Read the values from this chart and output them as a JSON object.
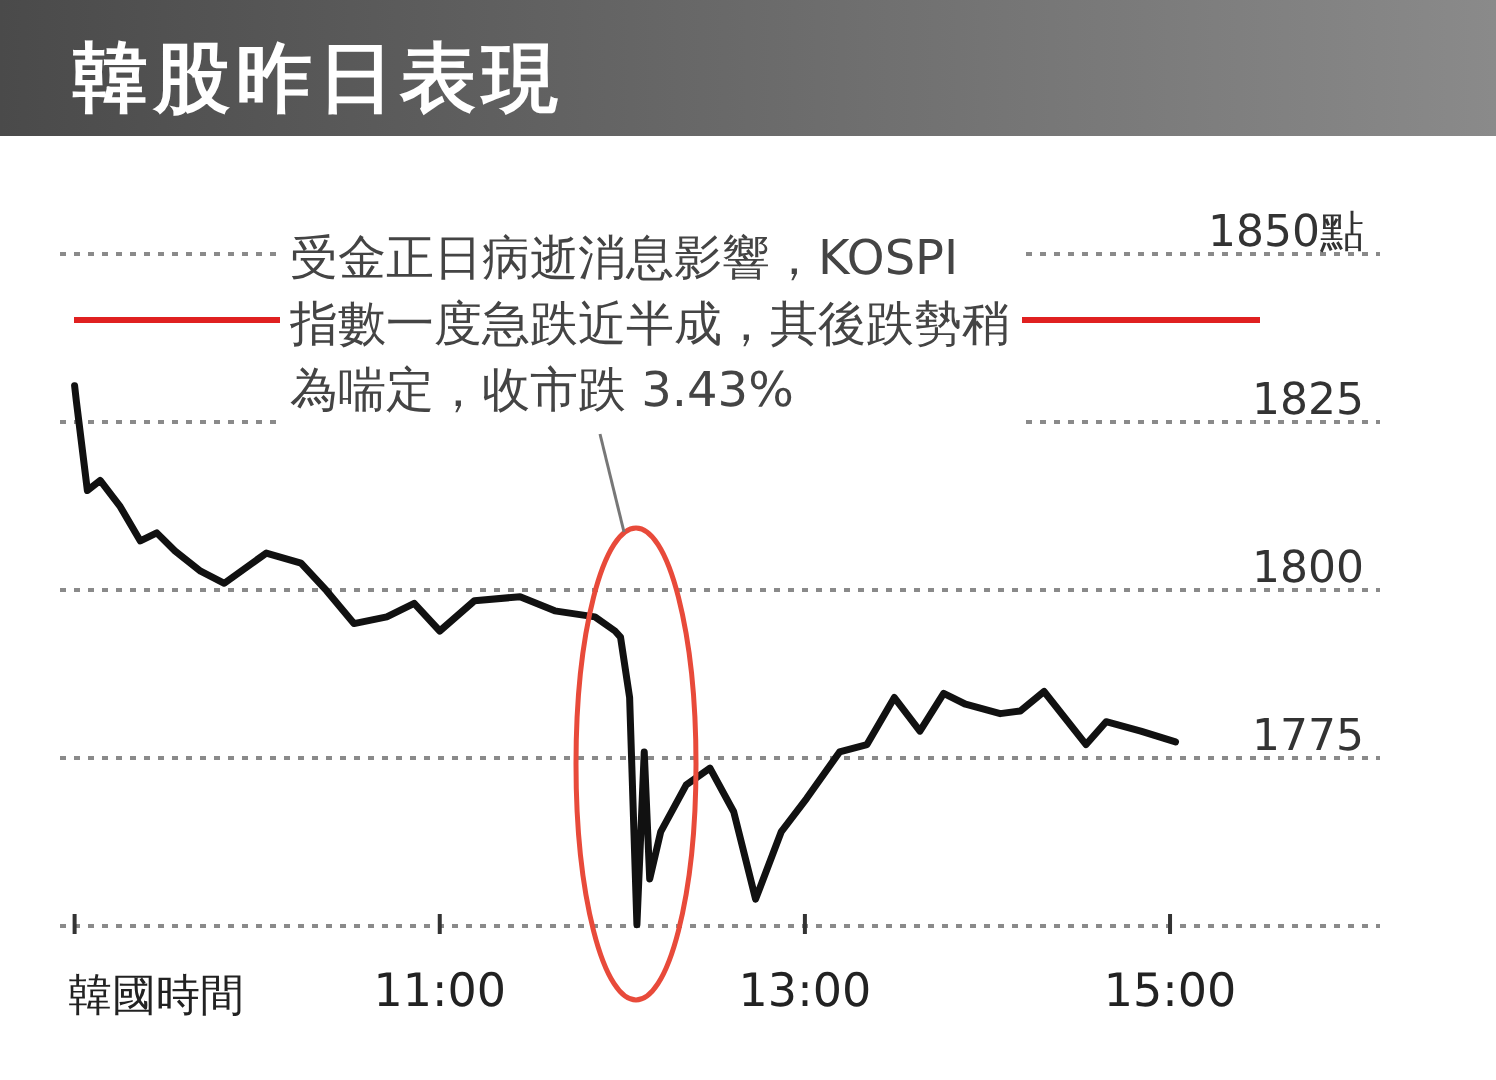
{
  "chart_data": {
    "type": "line",
    "title": "韓股昨日表現",
    "xlabel": "韓國時間",
    "x": [
      9.0,
      9.01,
      9.07,
      9.14,
      9.25,
      9.36,
      9.45,
      9.55,
      9.69,
      9.82,
      10.05,
      10.24,
      10.38,
      10.53,
      10.71,
      10.86,
      11.0,
      11.19,
      11.44,
      11.63,
      11.85,
      11.96,
      11.99,
      12.04,
      12.08,
      12.12,
      12.15,
      12.21,
      12.35,
      12.48,
      12.61,
      12.73,
      12.87,
      13.01,
      13.19,
      13.34,
      13.49,
      13.63,
      13.76,
      13.88,
      14.07,
      14.18,
      14.31,
      14.54,
      14.65,
      14.84,
      15.03
    ],
    "series": [
      {
        "color": "#111111",
        "values": [
          1830.4,
          1828,
          1814.8,
          1816.3,
          1812.4,
          1807.3,
          1808.5,
          1805.8,
          1802.8,
          1801,
          1805.5,
          1804,
          1799.9,
          1795,
          1796,
          1798,
          1793.9,
          1798.4,
          1799,
          1796.9,
          1796,
          1793.9,
          1793,
          1784,
          1750.2,
          1775.9,
          1757,
          1764,
          1771,
          1773.5,
          1767,
          1754,
          1764,
          1769,
          1775.9,
          1777,
          1784,
          1779,
          1784.6,
          1783,
          1781.6,
          1782,
          1784.9,
          1777,
          1780.4,
          1779,
          1777.4
        ]
      }
    ],
    "xlim": [
      8.92,
      16.15
    ],
    "xticks": [
      {
        "value": 9,
        "label": null
      },
      {
        "value": 11,
        "label": "11:00"
      },
      {
        "value": 13,
        "label": "13:00"
      },
      {
        "value": 15,
        "label": "15:00"
      }
    ],
    "ylim": [
      1750,
      1850
    ],
    "yticks": [
      {
        "value": 1750,
        "label": null
      },
      1775,
      1800,
      1825,
      {
        "value": 1850,
        "label": "1850點"
      }
    ],
    "grid": "y",
    "marker": "none",
    "line_style": "solid",
    "annotations": [
      "受金正日病逝消息影響，KOSPI 指數一度急跌近半成，其後跌勢稍為喘定，收市跌 3.43%"
    ]
  }
}
